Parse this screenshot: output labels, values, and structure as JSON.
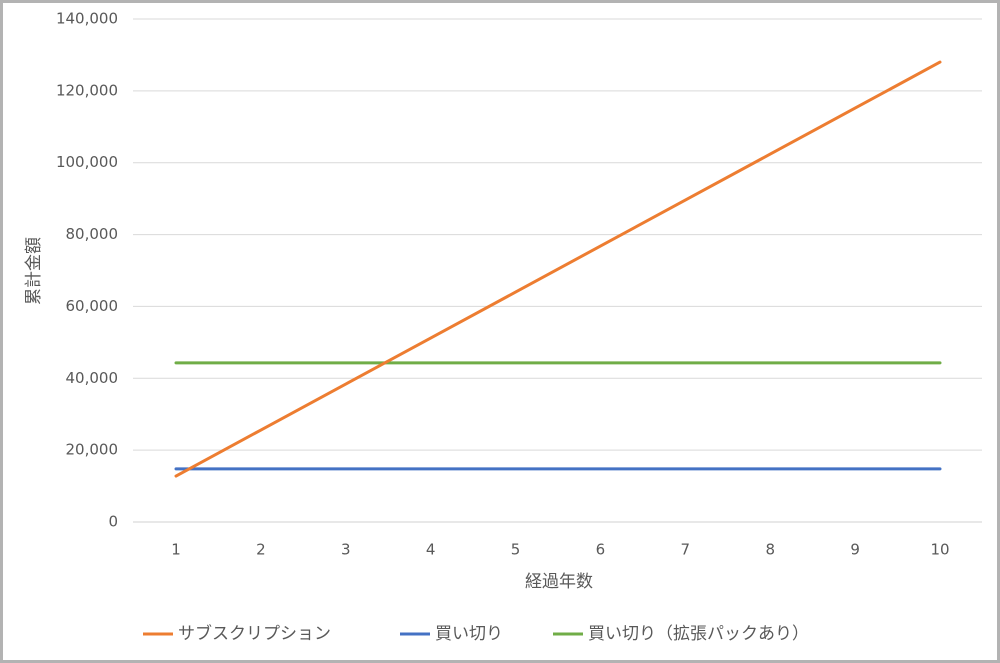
{
  "chart_data": {
    "type": "line",
    "title": "",
    "xlabel": "経過年数",
    "ylabel": "累計金額",
    "x": [
      1,
      2,
      3,
      4,
      5,
      6,
      7,
      8,
      9,
      10
    ],
    "ylim": [
      0,
      140000
    ],
    "yticks": [
      "0",
      "20,000",
      "40,000",
      "60,000",
      "80,000",
      "100,000",
      "120,000",
      "140,000"
    ],
    "grid": true,
    "legend_position": "bottom",
    "series": [
      {
        "name": "サブスクリプション",
        "color": "#ED7D31",
        "values": [
          12800,
          25600,
          38400,
          51200,
          64000,
          76800,
          89600,
          102400,
          115200,
          128000
        ]
      },
      {
        "name": "買い切り",
        "color": "#4472C4",
        "values": [
          14800,
          14800,
          14800,
          14800,
          14800,
          14800,
          14800,
          14800,
          14800,
          14800
        ]
      },
      {
        "name": "買い切り（拡張パックあり）",
        "color": "#70AD47",
        "values": [
          44300,
          44300,
          44300,
          44300,
          44300,
          44300,
          44300,
          44300,
          44300,
          44300
        ]
      }
    ]
  }
}
